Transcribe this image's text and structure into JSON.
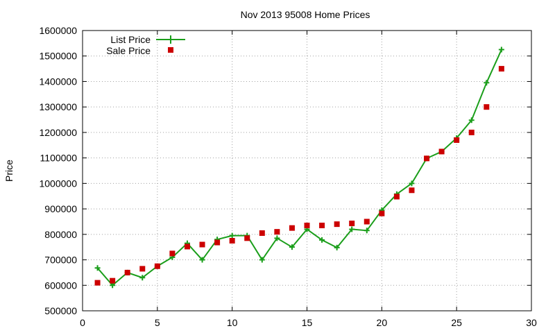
{
  "chart_data": {
    "type": "line",
    "title": "Nov 2013 95008 Home Prices",
    "xlabel": "",
    "ylabel": "Price",
    "xlim": [
      0,
      30
    ],
    "ylim": [
      500000,
      1600000
    ],
    "x_ticks": [
      0,
      5,
      10,
      15,
      20,
      25,
      30
    ],
    "y_ticks": [
      500000,
      600000,
      700000,
      800000,
      900000,
      1000000,
      1100000,
      1200000,
      1300000,
      1400000,
      1500000,
      1600000
    ],
    "grid": true,
    "legend_position": "top-left",
    "series": [
      {
        "name": "List Price",
        "style": "line-with-plus-markers",
        "color": "#1a9e1a",
        "x": [
          1,
          2,
          3,
          4,
          5,
          6,
          7,
          8,
          9,
          10,
          11,
          12,
          13,
          14,
          15,
          16,
          17,
          18,
          19,
          20,
          21,
          22,
          23,
          24,
          25,
          26,
          27,
          28
        ],
        "y": [
          668000,
          600000,
          650000,
          630000,
          675000,
          710000,
          765000,
          700000,
          780000,
          795000,
          795000,
          700000,
          785000,
          750000,
          820000,
          778000,
          748000,
          820000,
          815000,
          895000,
          958000,
          1000000,
          1098000,
          1125000,
          1178000,
          1248000,
          1395000,
          1525000
        ]
      },
      {
        "name": "Sale Price",
        "style": "square-markers",
        "color": "#cc0000",
        "x": [
          1,
          2,
          3,
          4,
          5,
          6,
          7,
          8,
          9,
          10,
          11,
          12,
          13,
          14,
          15,
          16,
          17,
          18,
          19,
          20,
          21,
          22,
          23,
          24,
          25,
          26,
          27,
          28
        ],
        "y": [
          610000,
          618000,
          650000,
          665000,
          675000,
          725000,
          752000,
          760000,
          768000,
          775000,
          785000,
          805000,
          810000,
          825000,
          835000,
          835000,
          840000,
          843000,
          850000,
          882000,
          948000,
          973000,
          1098000,
          1125000,
          1170000,
          1200000,
          1300000,
          1450000
        ]
      }
    ]
  }
}
